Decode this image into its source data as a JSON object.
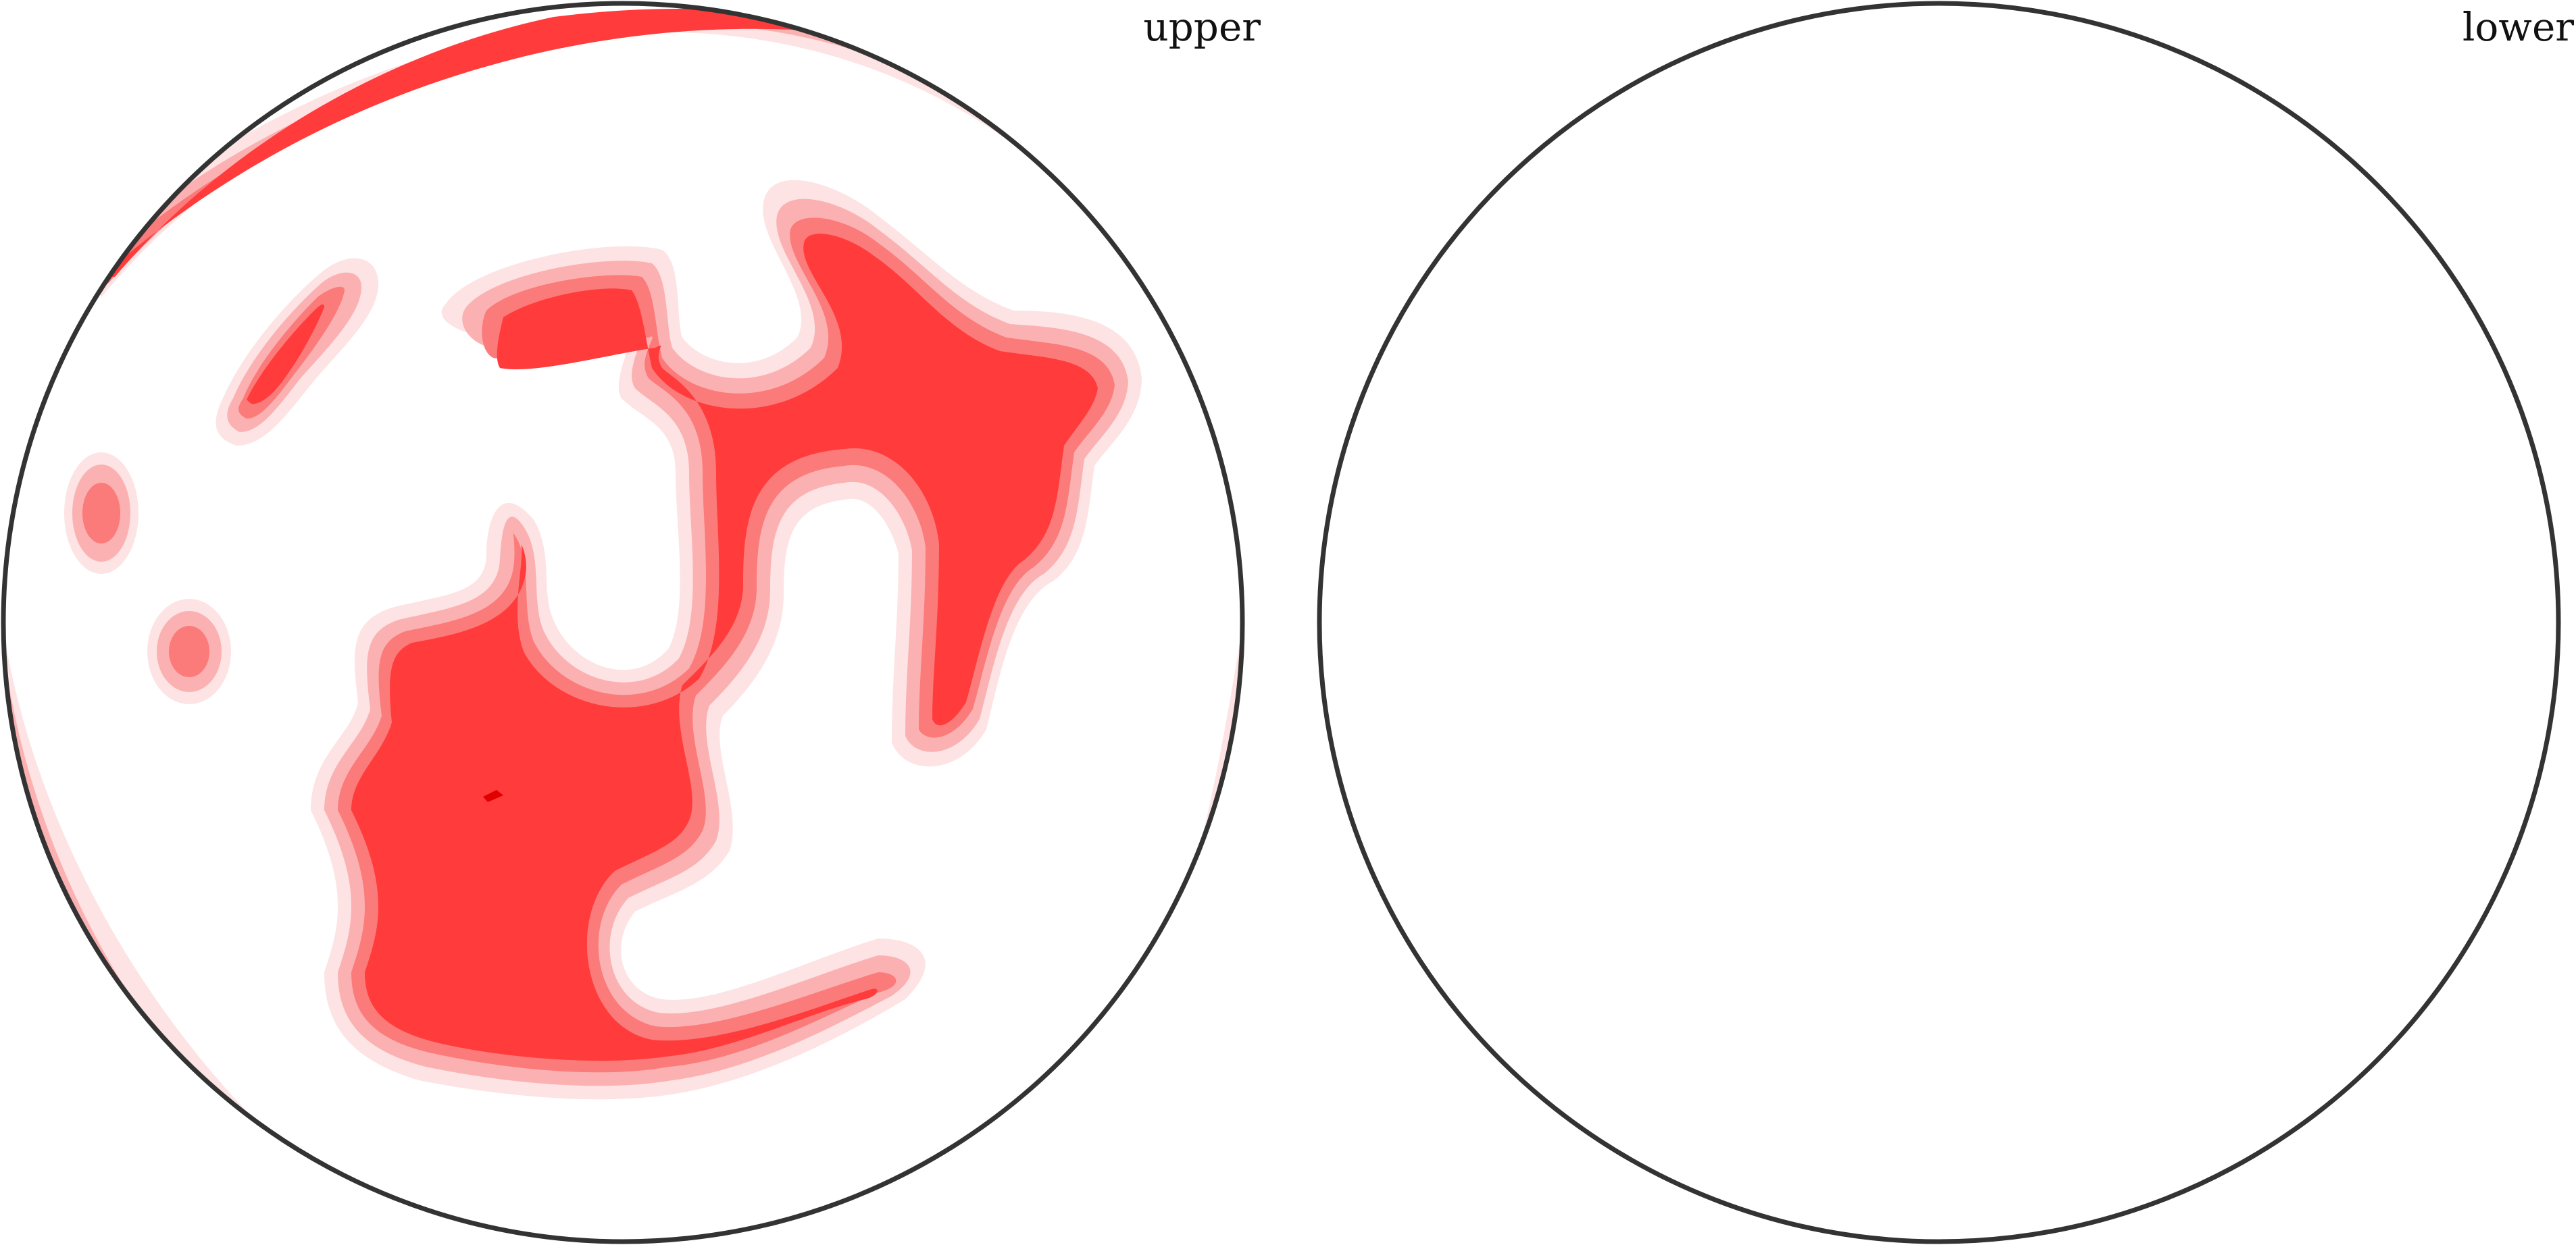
{
  "labels": {
    "upper": "upper",
    "lower": "lower"
  },
  "colors": {
    "outline": "#333333",
    "band1": "#fde3e3",
    "band2": "#fbb1b1",
    "band3": "#fb7a7a",
    "band4": "#ff3b3b",
    "band5": "#e00000"
  }
}
